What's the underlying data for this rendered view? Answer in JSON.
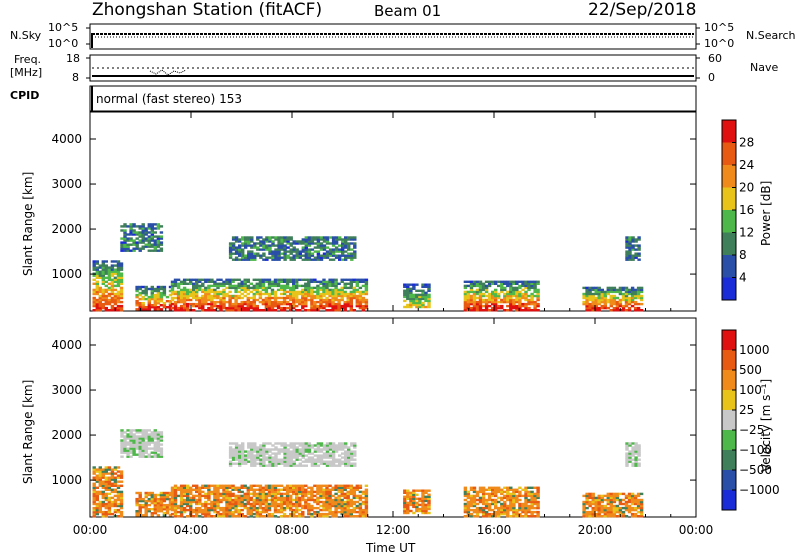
{
  "header": {
    "station": "Zhongshan Station (fitACF)",
    "beam": "Beam 01",
    "date": "22/Sep/2018"
  },
  "strip_panels": {
    "sky": {
      "left_label": "N.Sky",
      "right_label": "N.Search",
      "left_ticks": [
        "10^5",
        "10^0"
      ],
      "right_ticks": [
        "10^5",
        "10^0"
      ]
    },
    "freq": {
      "left_label_1": "Freq.",
      "left_label_2": "[MHz]",
      "right_label": "Nave",
      "left_ticks": [
        "18",
        "8"
      ],
      "right_ticks": [
        "60",
        "0"
      ]
    },
    "cpid": {
      "label": "CPID",
      "mode": "normal (fast stereo) 153"
    }
  },
  "colors": {
    "power": [
      "#1a2bd8",
      "#2a4fa8",
      "#3f7f5a",
      "#4fb84a",
      "#e8c41a",
      "#f08a1a",
      "#e85a12",
      "#e01010"
    ],
    "velocity": [
      "#e01010",
      "#e85a12",
      "#f08a1a",
      "#e8c41a",
      "#c8c8c8",
      "#4fb84a",
      "#3f7f5a",
      "#2a4fa8",
      "#1a2bd8"
    ]
  },
  "chart_data": [
    {
      "type": "heatmap",
      "title": "Power",
      "ylabel": "Slant Range [km]",
      "xlabel": "",
      "x_ticks": [
        "00:00",
        "04:00",
        "08:00",
        "12:00",
        "16:00",
        "20:00",
        "00:00"
      ],
      "y_ticks": [
        1000,
        2000,
        3000,
        4000
      ],
      "xlim_hours": [
        0,
        24
      ],
      "ylim_km": [
        180,
        4600
      ],
      "colorbar": {
        "label": "Power [dB]",
        "ticks": [
          "4",
          "8",
          "12",
          "16",
          "20",
          "24",
          "28"
        ],
        "range": [
          0,
          32
        ]
      },
      "regions": [
        {
          "x": [
            0.1,
            1.2
          ],
          "y": [
            180,
            1300
          ],
          "level": "strong"
        },
        {
          "x": [
            1.2,
            2.8
          ],
          "y": [
            1500,
            2100
          ],
          "level": "weak"
        },
        {
          "x": [
            1.8,
            3.2
          ],
          "y": [
            200,
            700
          ],
          "level": "strong"
        },
        {
          "x": [
            3.2,
            10.9
          ],
          "y": [
            180,
            900
          ],
          "level": "strong"
        },
        {
          "x": [
            5.5,
            10.5
          ],
          "y": [
            1300,
            1800
          ],
          "level": "weak"
        },
        {
          "x": [
            12.4,
            13.4
          ],
          "y": [
            250,
            750
          ],
          "level": "medium"
        },
        {
          "x": [
            14.8,
            17.8
          ],
          "y": [
            180,
            850
          ],
          "level": "strong"
        },
        {
          "x": [
            19.5,
            21.8
          ],
          "y": [
            180,
            700
          ],
          "level": "strong"
        },
        {
          "x": [
            21.2,
            21.8
          ],
          "y": [
            1300,
            1800
          ],
          "level": "weak"
        }
      ]
    },
    {
      "type": "heatmap",
      "title": "Velocity",
      "ylabel": "Slant Range [km]",
      "xlabel": "Time UT",
      "x_ticks": [
        "00:00",
        "04:00",
        "08:00",
        "12:00",
        "16:00",
        "20:00",
        "00:00"
      ],
      "y_ticks": [
        1000,
        2000,
        3000,
        4000
      ],
      "xlim_hours": [
        0,
        24
      ],
      "ylim_km": [
        180,
        4600
      ],
      "colorbar": {
        "label": "Velocity [m s⁻¹]",
        "ticks": [
          "1000",
          "500",
          "100",
          "25",
          "−25",
          "−100",
          "−500",
          "−1000"
        ]
      },
      "regions": [
        {
          "x": [
            0.1,
            1.2
          ],
          "y": [
            180,
            1300
          ],
          "level": "strong"
        },
        {
          "x": [
            1.2,
            2.8
          ],
          "y": [
            1500,
            2100
          ],
          "level": "weak"
        },
        {
          "x": [
            1.8,
            3.2
          ],
          "y": [
            200,
            700
          ],
          "level": "strong"
        },
        {
          "x": [
            3.2,
            10.9
          ],
          "y": [
            180,
            900
          ],
          "level": "strong"
        },
        {
          "x": [
            5.5,
            10.5
          ],
          "y": [
            1300,
            1800
          ],
          "level": "weak"
        },
        {
          "x": [
            12.4,
            13.4
          ],
          "y": [
            250,
            750
          ],
          "level": "medium"
        },
        {
          "x": [
            14.8,
            17.8
          ],
          "y": [
            180,
            850
          ],
          "level": "strong"
        },
        {
          "x": [
            19.5,
            21.8
          ],
          "y": [
            180,
            700
          ],
          "level": "strong"
        },
        {
          "x": [
            21.2,
            21.8
          ],
          "y": [
            1300,
            1800
          ],
          "level": "weak"
        }
      ]
    }
  ]
}
